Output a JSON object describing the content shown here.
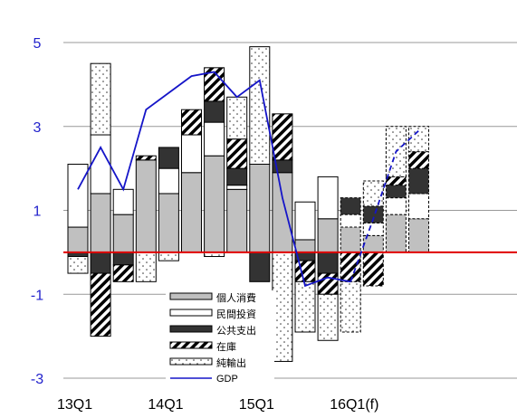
{
  "chart_data": {
    "type": "bar",
    "stacked": true,
    "ylim": [
      -3,
      5
    ],
    "y_ticks": [
      "-3",
      "-1",
      "1",
      "3",
      "5"
    ],
    "x_tick_labels": [
      {
        "label": "13Q1",
        "index": 0
      },
      {
        "label": "14Q1",
        "index": 4
      },
      {
        "label": "15Q1",
        "index": 8
      },
      {
        "label": "16Q1(f)",
        "index": 12
      }
    ],
    "forecast_start_index": 12,
    "num_quarters": 16,
    "series": [
      {
        "key": "consumption",
        "name": "個人消費",
        "pattern": "gray",
        "values": [
          0.6,
          1.4,
          0.9,
          2.2,
          1.4,
          1.9,
          2.3,
          1.5,
          2.1,
          1.9,
          0.3,
          0.8,
          0.6,
          0.4,
          0.9,
          0.8
        ]
      },
      {
        "key": "investment",
        "name": "民間投資",
        "pattern": "white",
        "values": [
          1.5,
          1.4,
          0.6,
          0.0,
          0.6,
          0.9,
          0.8,
          0.1,
          0.0,
          0.0,
          0.9,
          1.0,
          0.3,
          0.3,
          0.4,
          0.6
        ]
      },
      {
        "key": "government",
        "name": "公共支出",
        "pattern": "black",
        "values": [
          -0.1,
          -0.5,
          -0.3,
          0.0,
          0.5,
          0.0,
          0.5,
          0.4,
          -0.7,
          0.3,
          -0.2,
          -0.5,
          0.4,
          0.4,
          0.3,
          0.6
        ]
      },
      {
        "key": "inventory",
        "name": "在庫",
        "pattern": "hatch",
        "values": [
          0.0,
          -1.5,
          -0.4,
          0.1,
          0.0,
          0.6,
          0.8,
          0.7,
          0.0,
          1.1,
          -0.5,
          -0.5,
          -0.7,
          -0.8,
          0.2,
          0.4
        ]
      },
      {
        "key": "net_exports",
        "name": "純輸出",
        "pattern": "dots",
        "values": [
          -0.4,
          1.7,
          0.0,
          -0.7,
          -0.2,
          0.0,
          -0.1,
          1.0,
          2.8,
          -2.6,
          -1.2,
          -1.1,
          -1.2,
          0.6,
          1.2,
          0.6
        ]
      }
    ],
    "gdp": {
      "name": "GDP",
      "values": [
        1.5,
        2.5,
        1.5,
        3.4,
        3.8,
        4.2,
        4.3,
        3.7,
        4.1,
        1.3,
        -0.8,
        -0.6,
        -0.7,
        0.8,
        2.4,
        2.9
      ]
    },
    "grid": true,
    "zero_line_color": "#e00000",
    "axis_tick_color": "#2222cc",
    "gdp_color": "#1515c8",
    "legend_position": "center-bottom"
  }
}
